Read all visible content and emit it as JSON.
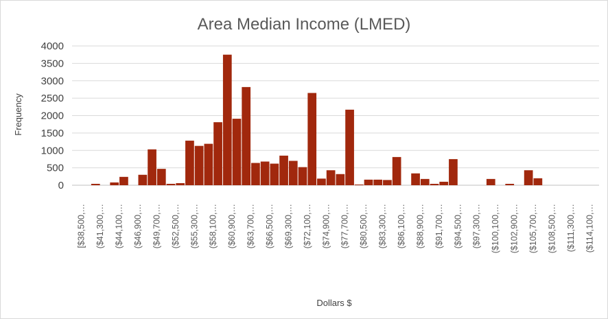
{
  "chart_data": {
    "type": "bar",
    "title": "Area Median Income (LMED)",
    "xlabel": "Dollars $",
    "ylabel": "Frequency",
    "ylim": [
      0,
      4000
    ],
    "yticks": [
      0,
      500,
      1000,
      1500,
      2000,
      2500,
      3000,
      3500,
      4000
    ],
    "bar_color": "#A1280D",
    "grid": true,
    "legend": "none",
    "xtick_labels": [
      "[$38,500,…",
      "($41,300,…",
      "($44,100,…",
      "($46,900,…",
      "($49,700,…",
      "($52,500,…",
      "($55,300,…",
      "($58,100,…",
      "($60,900,…",
      "($63,700,…",
      "($66,500,…",
      "($69,300,…",
      "($72,100,…",
      "($74,900,…",
      "($77,700,…",
      "($80,500,…",
      "($83,300,…",
      "($86,100,…",
      "($88,900,…",
      "($91,700,…",
      "($94,500,…",
      "($97,300,…",
      "($100,100,…",
      "($102,900,…",
      "($105,700,…",
      "($108,500,…",
      "($111,300,…",
      "($114,100,…"
    ],
    "values": [
      0,
      0,
      40,
      0,
      80,
      240,
      0,
      300,
      1030,
      470,
      40,
      60,
      1280,
      1130,
      1190,
      1810,
      3750,
      1910,
      2820,
      640,
      680,
      620,
      850,
      700,
      520,
      2650,
      190,
      430,
      320,
      2170,
      20,
      160,
      160,
      150,
      810,
      0,
      340,
      180,
      40,
      100,
      750,
      0,
      0,
      0,
      180,
      0,
      40,
      0,
      430,
      200,
      0,
      0,
      0,
      0,
      0,
      0
    ]
  }
}
